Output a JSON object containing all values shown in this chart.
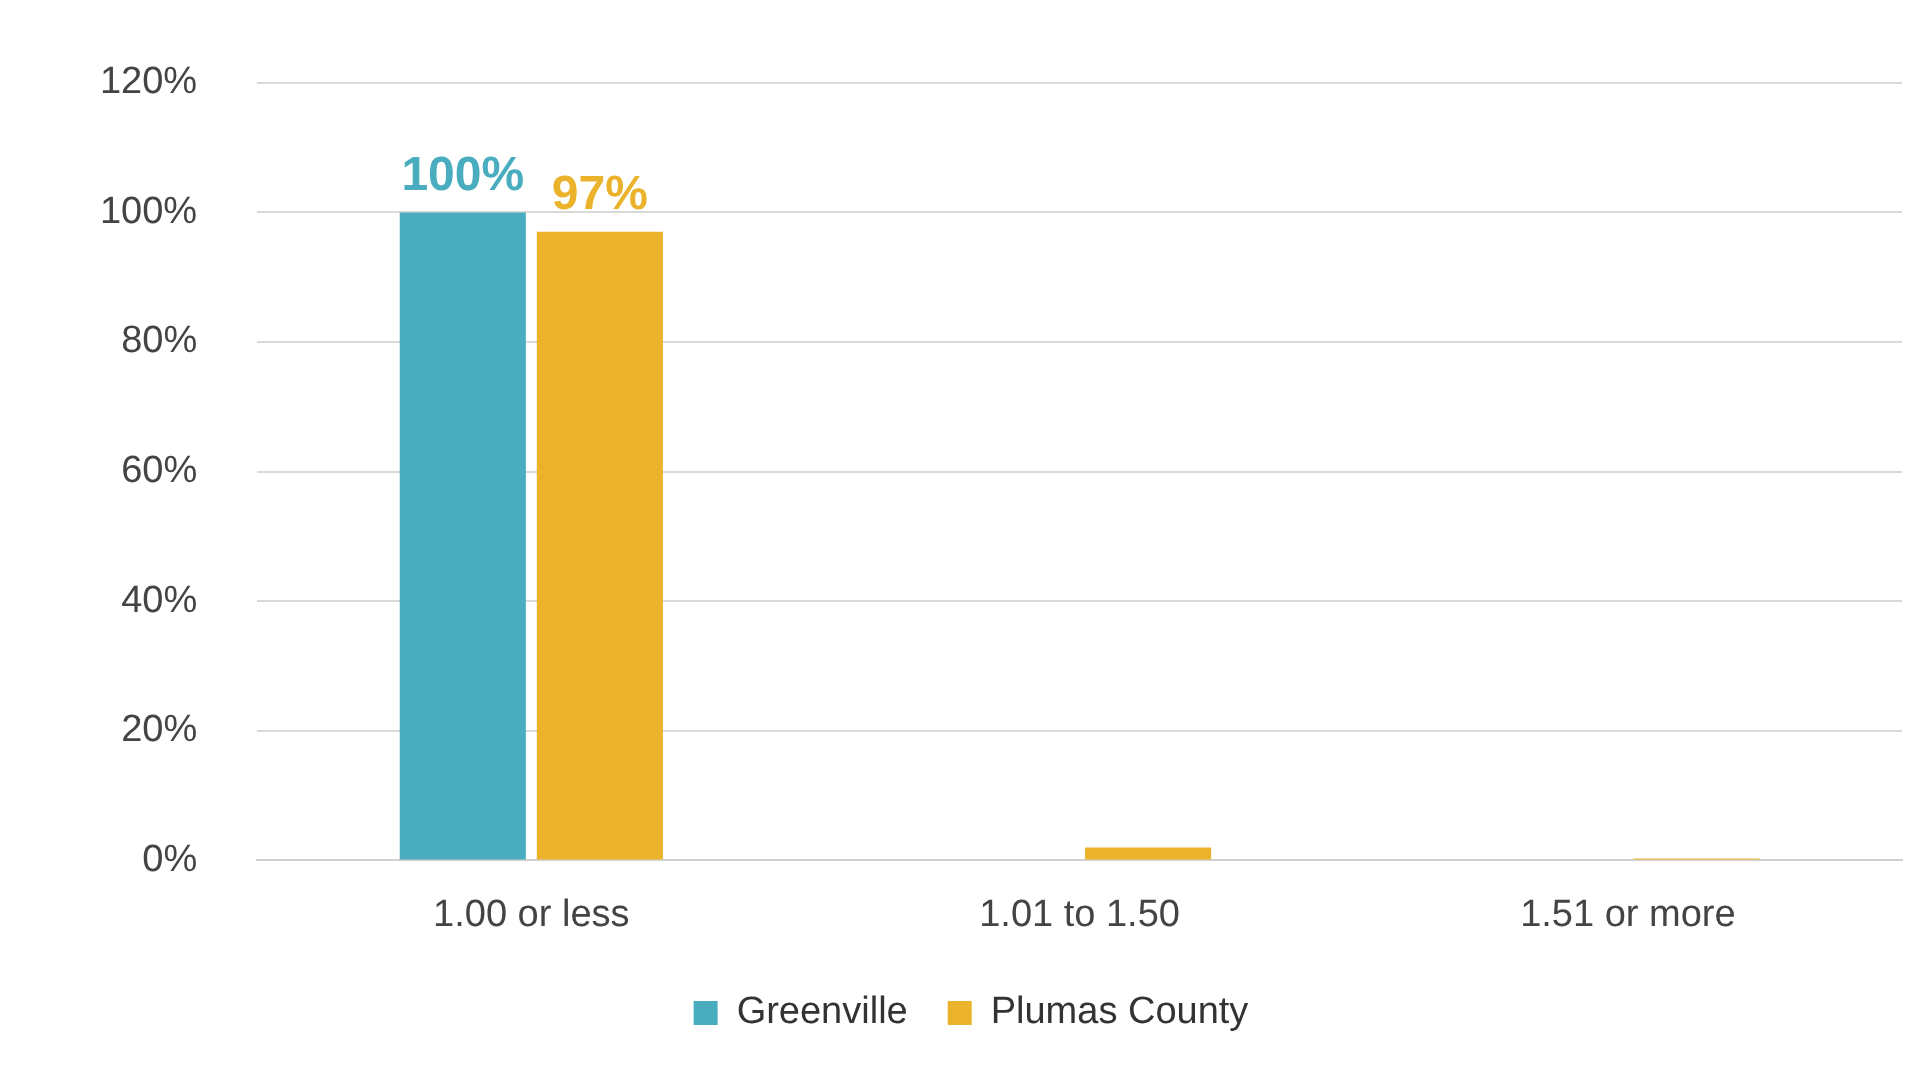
{
  "chart_data": {
    "type": "bar",
    "categories": [
      "1.00 or less",
      "1.01 to 1.50",
      "1.51 or more"
    ],
    "series": [
      {
        "name": "Greenville",
        "color": "#4aacbf",
        "values": [
          100,
          0,
          0
        ],
        "value_labels": [
          "100%",
          null,
          null
        ]
      },
      {
        "name": "Plumas County",
        "color": "#ebb32c",
        "values": [
          97,
          2,
          0.3
        ],
        "value_labels": [
          "97%",
          null,
          null
        ]
      }
    ],
    "ylim": [
      0,
      120
    ],
    "yticks": [
      {
        "value": 0,
        "label": "0%"
      },
      {
        "value": 20,
        "label": "20%"
      },
      {
        "value": 40,
        "label": "40%"
      },
      {
        "value": 60,
        "label": "60%"
      },
      {
        "value": 80,
        "label": "80%"
      },
      {
        "value": 100,
        "label": "100%"
      },
      {
        "value": 120,
        "label": "120%"
      }
    ],
    "grid": "y",
    "legend": "bottom"
  }
}
